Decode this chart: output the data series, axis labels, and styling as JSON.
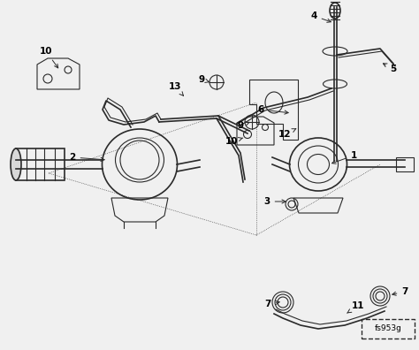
{
  "background_color": "#f5f5f5",
  "line_color": "#2a2a2a",
  "label_color": "#000000",
  "watermark": "fs953g",
  "figsize": [
    4.74,
    3.96
  ],
  "dpi": 100,
  "image_bg": "#ebebeb"
}
